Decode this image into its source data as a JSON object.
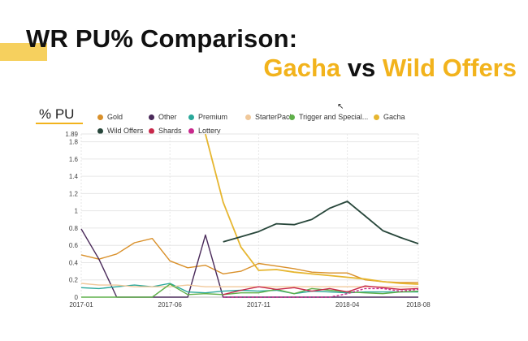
{
  "header": {
    "title_line1": "WR PU% Comparison:",
    "title_line2_a": "Gacha",
    "title_line2_b": "vs",
    "title_line2_c": "Wild Offers"
  },
  "chart_data": {
    "type": "line",
    "ylabel": "% PU",
    "ylim": [
      0,
      1.89
    ],
    "yticks": [
      "0",
      "0.2",
      "0.4",
      "0.6",
      "0.8",
      "1",
      "1.2",
      "1.4",
      "1.6",
      "1.8",
      "1.89"
    ],
    "ytick_values": [
      0,
      0.2,
      0.4,
      0.6,
      0.8,
      1,
      1.2,
      1.4,
      1.6,
      1.8,
      1.89
    ],
    "xticks": [
      "2017-01",
      "2017-06",
      "2017-11",
      "2018-04",
      "2018-08"
    ],
    "xtick_index": [
      0,
      5,
      10,
      15,
      19
    ],
    "x_count": 20,
    "grid": true,
    "legend_position": "top",
    "series": [
      {
        "name": "Gold",
        "color": "#d9902a",
        "values": [
          0.49,
          0.44,
          0.5,
          0.63,
          0.68,
          0.42,
          0.34,
          0.37,
          0.27,
          0.3,
          0.39,
          0.36,
          0.33,
          0.29,
          0.28,
          0.28,
          0.2,
          0.18,
          0.17,
          0.17
        ]
      },
      {
        "name": "Other",
        "color": "#4a2a5a",
        "values": [
          0.79,
          0.44,
          0,
          0,
          0,
          0,
          0,
          0.72,
          0,
          0,
          0,
          0,
          0,
          0,
          0,
          0,
          0,
          0,
          0,
          0
        ]
      },
      {
        "name": "Premium",
        "color": "#2aa89a",
        "values": [
          0.11,
          0.1,
          0.12,
          0.14,
          0.12,
          0.16,
          0.06,
          0.05,
          0.07,
          0.08,
          0.07,
          0.08,
          0.04,
          0.07,
          0.06,
          0.05,
          0.06,
          0.06,
          0.06,
          0.06
        ]
      },
      {
        "name": "StarterPack",
        "color": "#f0c89a",
        "values": [
          0.16,
          0.14,
          0.14,
          0.12,
          0.12,
          0.12,
          0.14,
          0.12,
          0.12,
          0.12,
          0.12,
          0.12,
          0.12,
          0.12,
          0.12,
          0.12,
          0.12,
          0.12,
          0.12,
          0.12
        ]
      },
      {
        "name": "Trigger and Special...",
        "color": "#5fb04a",
        "values": [
          0,
          0,
          0,
          0,
          0,
          0.15,
          0.03,
          0.04,
          0.03,
          0.05,
          0.05,
          0.09,
          0.04,
          0.1,
          0.08,
          0.06,
          0.05,
          0.04,
          0.06,
          0.07
        ]
      },
      {
        "name": "Gacha",
        "color": "#e6b630",
        "values": [
          null,
          null,
          null,
          null,
          null,
          null,
          null,
          1.89,
          1.1,
          0.58,
          0.31,
          0.32,
          0.29,
          0.27,
          0.25,
          0.23,
          0.21,
          0.18,
          0.16,
          0.15
        ]
      },
      {
        "name": "Wild Offers",
        "color": "#27463a",
        "values": [
          null,
          null,
          null,
          null,
          null,
          null,
          null,
          null,
          0.64,
          0.7,
          0.76,
          0.85,
          0.84,
          0.9,
          1.03,
          1.11,
          0.94,
          0.77,
          0.69,
          0.62
        ]
      },
      {
        "name": "Shards",
        "color": "#c8284a",
        "values": [
          null,
          null,
          null,
          null,
          null,
          null,
          null,
          null,
          0.03,
          0.08,
          0.12,
          0.09,
          0.11,
          0.07,
          0.1,
          0.06,
          0.13,
          0.11,
          0.09,
          0.1
        ]
      },
      {
        "name": "Lottery",
        "color": "#c8288c",
        "values": [
          null,
          null,
          null,
          null,
          null,
          null,
          null,
          null,
          0.0,
          0.0,
          0.0,
          0.0,
          0.0,
          0.0,
          0.0,
          0.04,
          0.1,
          0.1,
          0.07,
          0.09
        ]
      }
    ]
  }
}
